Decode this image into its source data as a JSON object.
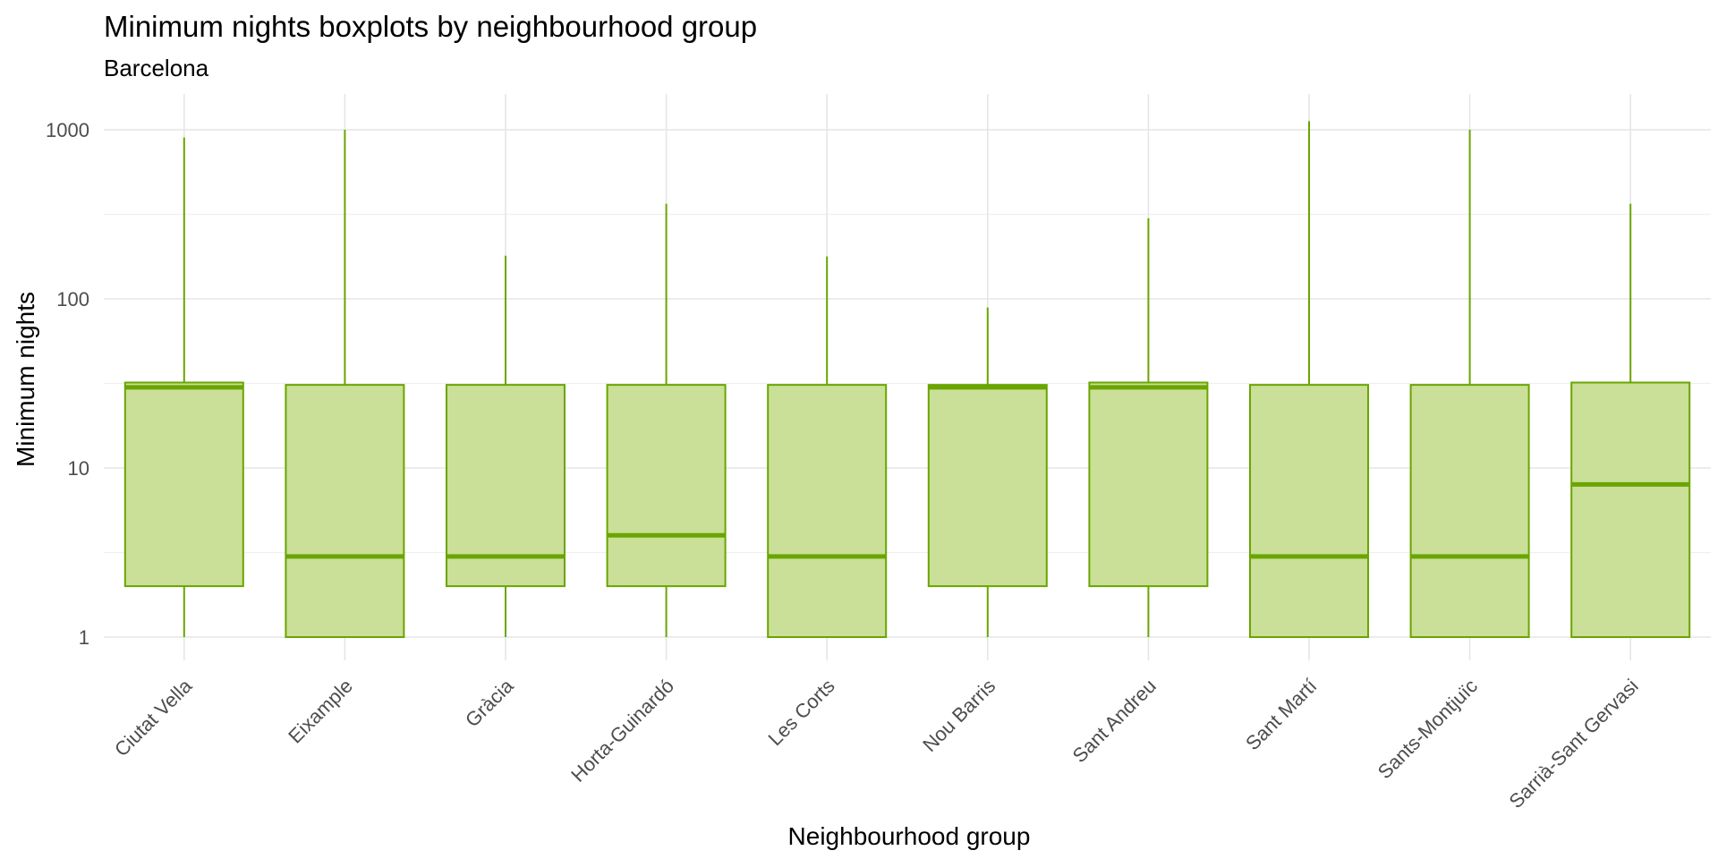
{
  "chart_data": {
    "type": "boxplot",
    "title": "Minimum nights boxplots by neighbourhood group",
    "subtitle": "Barcelona",
    "xlabel": "Neighbourhood group",
    "ylabel": "Minimum nights",
    "yscale": "log10",
    "ylim": [
      0.8,
      1500
    ],
    "yticks": [
      1,
      10,
      100,
      1000
    ],
    "ytick_labels": [
      "1",
      "10",
      "100",
      "1000"
    ],
    "grid": true,
    "color": "#6aa500",
    "fill": "#cadf97",
    "categories": [
      "Ciutat Vella",
      "Eixample",
      "Gràcia",
      "Horta-Guinardó",
      "Les Corts",
      "Nou Barris",
      "Sant Andreu",
      "Sant Martí",
      "Sants-Montjuïc",
      "Sarrià-Sant Gervasi"
    ],
    "boxes": [
      {
        "min": 1,
        "q1": 2,
        "median": 30,
        "q3": 32,
        "max": 900
      },
      {
        "min": 1,
        "q1": 1,
        "median": 3,
        "q3": 31,
        "max": 1000
      },
      {
        "min": 1,
        "q1": 2,
        "median": 3,
        "q3": 31,
        "max": 180
      },
      {
        "min": 1,
        "q1": 2,
        "median": 4,
        "q3": 31,
        "max": 365
      },
      {
        "min": 1,
        "q1": 1,
        "median": 3,
        "q3": 31,
        "max": 178
      },
      {
        "min": 1,
        "q1": 2,
        "median": 30,
        "q3": 31,
        "max": 89
      },
      {
        "min": 1,
        "q1": 2,
        "median": 30,
        "q3": 32,
        "max": 300
      },
      {
        "min": 1,
        "q1": 1,
        "median": 3,
        "q3": 31,
        "max": 1124
      },
      {
        "min": 1,
        "q1": 1,
        "median": 3,
        "q3": 31,
        "max": 1000
      },
      {
        "min": 1,
        "q1": 1,
        "median": 8,
        "q3": 32,
        "max": 365
      }
    ]
  }
}
